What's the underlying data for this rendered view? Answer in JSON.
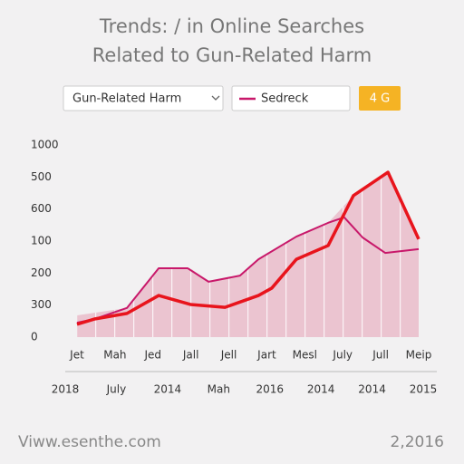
{
  "chart_data": {
    "type": "line",
    "title": [
      "Trends: / in Online Searches",
      "Related to Gun-Related Harm"
    ],
    "dropdown": "Gun-Related Harm",
    "button": "4 G",
    "categories": [
      "Jet",
      "Mah",
      "Jed",
      "Jall",
      "Jell",
      "Jart",
      "Mesl",
      "July",
      "Jull",
      "Meip"
    ],
    "categories_2": [
      "2018",
      "July",
      "2014",
      "Mah",
      "2016",
      "2014",
      "2014",
      "2015"
    ],
    "xlim": [
      0,
      100
    ],
    "ylim": [
      0,
      6
    ],
    "yticks": [
      0,
      {
        "value": 1,
        "label": "300"
      },
      {
        "value": 2,
        "label": "200"
      },
      {
        "value": 3,
        "label": "100"
      },
      {
        "value": 4,
        "label": "600"
      },
      {
        "value": 5,
        "label": "500"
      },
      {
        "value": 6,
        "label": "1000"
      }
    ],
    "area": {
      "color": "#e8b4c4",
      "x": [
        0,
        14.6,
        23.9,
        33.2,
        38.5,
        47.7,
        53.1,
        64.2,
        73.5,
        80.9,
        91.0,
        100
      ],
      "values": [
        0.68,
        0.91,
        2.15,
        2.15,
        1.73,
        1.92,
        2.43,
        3.14,
        3.57,
        4.42,
        5.15,
        3.06
      ]
    },
    "series": [
      {
        "color": "#e8141c",
        "x": [
          0,
          5.3,
          14.6,
          23.9,
          33.2,
          43.3,
          53.1,
          57.0,
          64.2,
          73.5,
          80.9,
          91.0,
          100
        ],
        "values": [
          0.4,
          0.57,
          0.74,
          1.3,
          1.02,
          0.93,
          1.3,
          1.53,
          2.43,
          2.86,
          4.42,
          5.15,
          3.06
        ]
      },
      {
        "name": "Sedreck",
        "color": "#c8186a",
        "x": [
          0,
          5.3,
          14.6,
          23.9,
          32.4,
          38.5,
          47.7,
          53.1,
          64.2,
          73.5,
          78.2,
          83.6,
          90.2,
          100
        ],
        "values": [
          0.45,
          0.57,
          0.91,
          2.15,
          2.15,
          1.73,
          1.92,
          2.43,
          3.14,
          3.57,
          3.74,
          3.11,
          2.63,
          2.75
        ]
      }
    ],
    "footer_left": "Viww.esenthe.com",
    "footer_right": "2,2016"
  }
}
